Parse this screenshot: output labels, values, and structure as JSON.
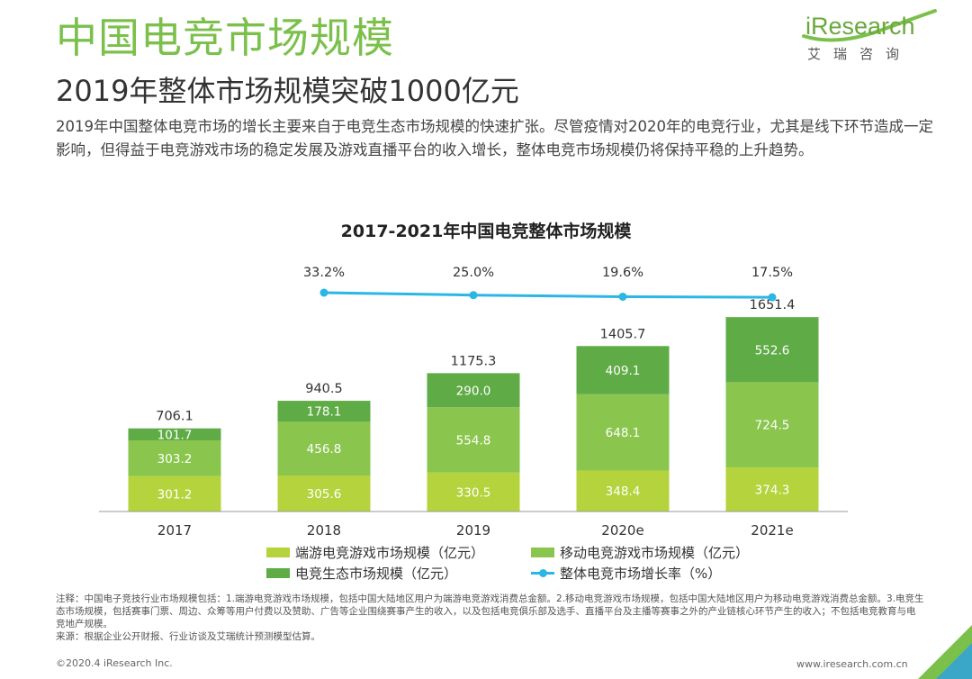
{
  "header": {
    "title": "中国电竞市场规模",
    "subtitle": "2019年整体市场规模突破1000亿元",
    "description": "2019年中国整体电竞市场的增长主要来自于电竞生态市场规模的快速扩张。尽管疫情对2020年的电竞行业，尤其是线下环节造成一定影响，但得益于电竞游戏市场的稳定发展及游戏直播平台的收入增长，整体电竞市场规模仍将保持平稳的上升趋势。"
  },
  "logo": {
    "brand_i": "i",
    "brand_rest": "Research",
    "cn": "艾瑞咨询"
  },
  "colors": {
    "pc": "#b5d33c",
    "mobile": "#8ac64e",
    "eco": "#5fab46",
    "line": "#2ab7e3",
    "title_green": "#7bc04b"
  },
  "chart_data": {
    "type": "bar",
    "stacked": true,
    "title": "2017-2021年中国电竞整体市场规模",
    "categories": [
      "2017",
      "2018",
      "2019",
      "2020e",
      "2021e"
    ],
    "series": [
      {
        "name": "端游电竞游戏市场规模（亿元）",
        "values": [
          301.2,
          305.6,
          330.5,
          348.4,
          374.3
        ]
      },
      {
        "name": "移动电竞游戏市场规模（亿元）",
        "values": [
          303.2,
          456.8,
          554.8,
          648.1,
          724.5
        ]
      },
      {
        "name": "电竞生态市场规模（亿元）",
        "values": [
          101.7,
          178.1,
          290.0,
          409.1,
          552.6
        ]
      }
    ],
    "totals": [
      "706.1",
      "940.5",
      "1175.3",
      "1405.7",
      "1651.4"
    ],
    "value_labels": [
      [
        "301.2",
        "305.6",
        "330.5",
        "348.4",
        "374.3"
      ],
      [
        "303.2",
        "456.8",
        "554.8",
        "648.1",
        "724.5"
      ],
      [
        "101.7",
        "178.1",
        "290.0",
        "409.1",
        "552.6"
      ]
    ],
    "line_series": {
      "name": "整体电竞市场增长率（%）",
      "x": [
        "2018",
        "2019",
        "2020e",
        "2021e"
      ],
      "values": [
        33.2,
        25.0,
        19.6,
        17.5
      ],
      "labels": [
        "33.2%",
        "25.0%",
        "19.6%",
        "17.5%"
      ]
    },
    "legend_placement": "bottom",
    "grid": false
  },
  "footer": {
    "notes": "注释：中国电子竞技行业市场规模包括：1.端游电竞游戏市场规模，包括中国大陆地区用户为端游电竞游戏消费总金额。2.移动电竞游戏市场规模，包括中国大陆地区用户为移动电竞游戏消费总金额。3.电竞生态市场规模，包括赛事门票、周边、众筹等用户付费以及赞助、广告等企业围绕赛事产生的收入，以及包括电竞俱乐部及选手、直播平台及主播等赛事之外的产业链核心环节产生的收入；不包括电竞教育与电竞地产规模。",
    "source": "来源：根据企业公开财报、行业访谈及艾瑞统计预测模型估算。",
    "copyright": "©2020.4 iResearch Inc.",
    "site": "www.iresearch.com.cn"
  }
}
